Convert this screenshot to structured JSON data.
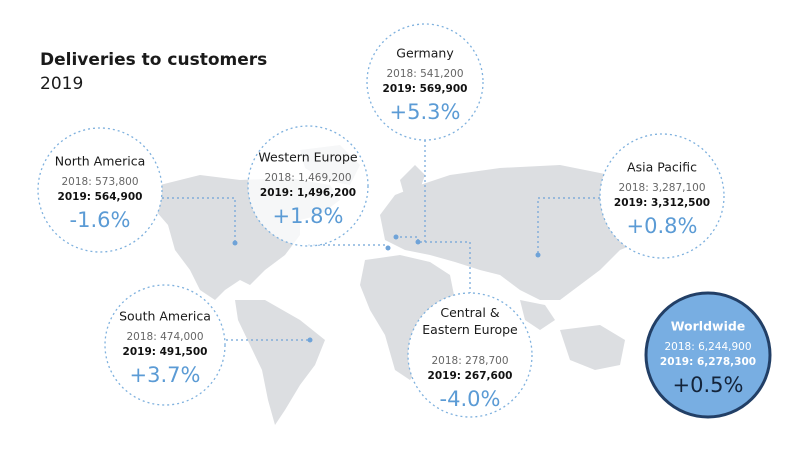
{
  "header": {
    "title": "Deliveries to customers",
    "subtitle": "2019"
  },
  "regions": [
    {
      "name": "Germany",
      "line2018": "2018: 541,200",
      "line2019": "2019: 569,900",
      "change": "+5.3%"
    },
    {
      "name": "Western Europe",
      "line2018": "2018: 1,469,200",
      "line2019": "2019: 1,496,200",
      "change": "+1.8%"
    },
    {
      "name": "North America",
      "line2018": "2018: 573,800",
      "line2019": "2019: 564,900",
      "change": "-1.6%"
    },
    {
      "name": "Asia Pacific",
      "line2018": "2018: 3,287,100",
      "line2019": "2019: 3,312,500",
      "change": "+0.8%"
    },
    {
      "name": "South America",
      "line2018": "2018: 474,000",
      "line2019": "2019: 491,500",
      "change": "+3.7%"
    },
    {
      "name": "Central & Eastern Europe",
      "line2018": "2018: 278,700",
      "line2019": "2019: 267,600",
      "change": "-4.0%"
    },
    {
      "name": "Worldwide",
      "line2018": "2018: 6,244,900",
      "line2019": "2019: 6,278,300",
      "change": "+0.5%"
    }
  ]
}
